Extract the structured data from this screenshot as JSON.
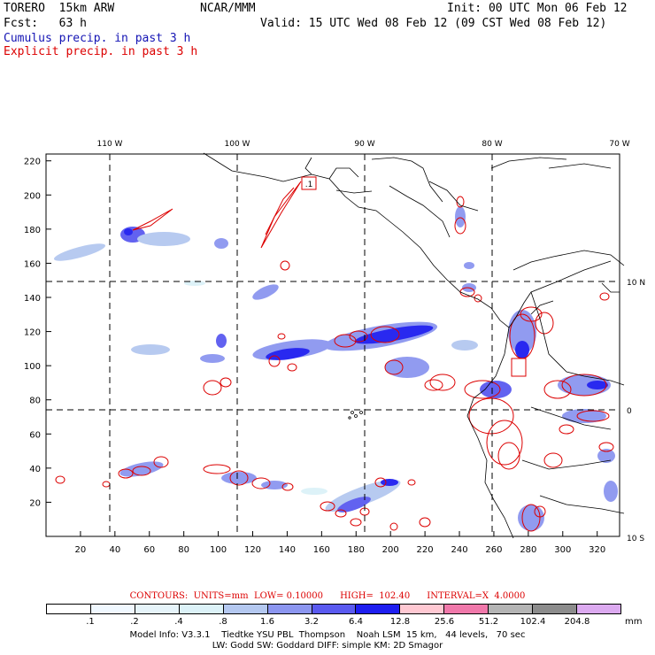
{
  "header": {
    "model": "TORERO  15km ARW",
    "org": "NCAR/MMM",
    "init": "Init: 00 UTC Mon 06 Feb 12",
    "fcst": "Fcst:   63 h",
    "valid": "Valid: 15 UTC Wed 08 Feb 12 (09 CST Wed 08 Feb 12)",
    "cumulus": "Cumulus precip. in past 3 h",
    "explicit": "Explicit precip. in past 3 h"
  },
  "map": {
    "lon_labels": [
      "110 W",
      "100 W",
      "90 W",
      "80 W",
      "70 W"
    ],
    "lat_labels": [
      "10 N",
      "0",
      "10 S"
    ],
    "x_ticks": [
      "20",
      "40",
      "60",
      "80",
      "100",
      "120",
      "140",
      "160",
      "180",
      "200",
      "220",
      "240",
      "260",
      "280",
      "300",
      "320"
    ],
    "y_ticks": [
      "20",
      "40",
      "60",
      "80",
      "100",
      "120",
      "140",
      "160",
      "180",
      "200",
      "220"
    ],
    "box_label": ".1",
    "grid_x_range": [
      0,
      333
    ],
    "grid_y_range": [
      0,
      224
    ]
  },
  "contours": {
    "line": "CONTOURS:  UNITS=mm  LOW= 0.10000      HIGH=  102.40      INTERVAL=X  4.0000"
  },
  "colorbar": {
    "labels": [
      ".1",
      ".2",
      ".4",
      ".8",
      "1.6",
      "3.2",
      "6.4",
      "12.8",
      "25.6",
      "51.2",
      "102.4",
      "204.8"
    ],
    "units": "mm",
    "colors": [
      "#ffffff",
      "#f0f8ff",
      "#e6f4fa",
      "#dcf2f8",
      "#b4c8f0",
      "#8c96f0",
      "#5a5af0",
      "#1e1ef0",
      "#ffc8d2",
      "#f078aa",
      "#b4b4b4",
      "#8c8c8c",
      "#dcaaf0"
    ]
  },
  "model_info": {
    "line1": "Model Info: V3.3.1    Tiedtke YSU PBL  Thompson    Noah LSM  15 km,   44 levels,   70 sec",
    "line2": "LW: Godd SW: Goddard DIFF: simple KM: 2D Smagor"
  }
}
